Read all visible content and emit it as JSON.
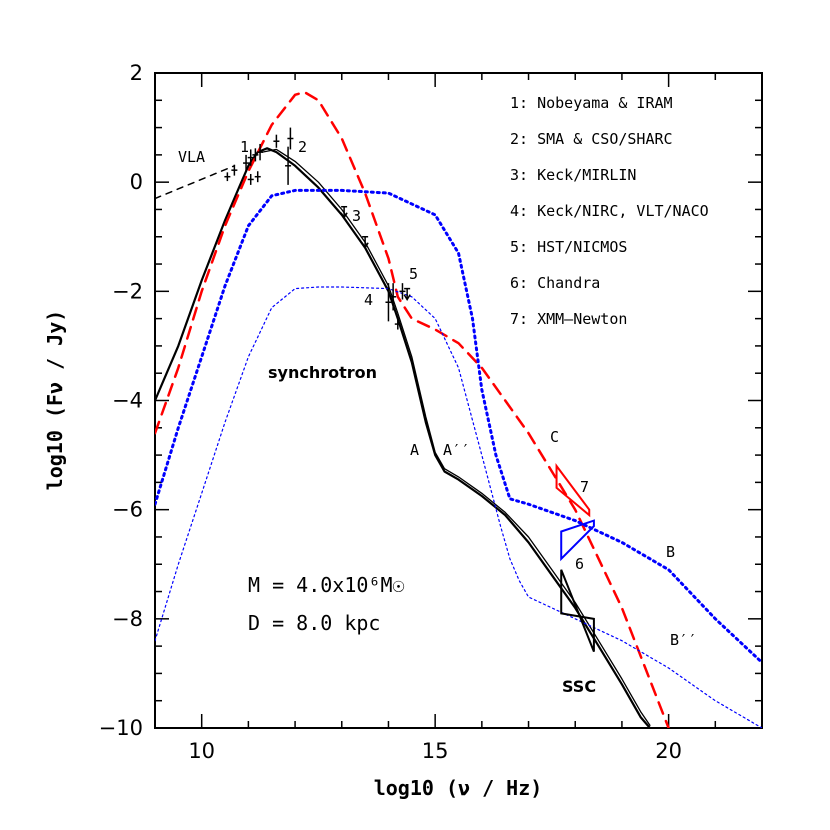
{
  "chart_data": {
    "type": "line",
    "xlabel": "log10 (ν / Hz)",
    "ylabel": "log10 (Fν / Jy)",
    "xlim": [
      9,
      22
    ],
    "ylim": [
      -10,
      2
    ],
    "x_ticks": [
      10,
      15,
      20
    ],
    "y_ticks": [
      2,
      0,
      -2,
      -4,
      -6,
      -8,
      -10
    ],
    "legend": [
      "1: Nobeyama & IRAM",
      "2: SMA & CSO/SHARC",
      "3: Keck/MIRLIN",
      "4: Keck/NIRC, VLT/NACO",
      "5: HST/NICMOS",
      "6: Chandra",
      "7: XMM–Newton"
    ],
    "annotations": {
      "vla": "VLA",
      "lbl1": "1",
      "lbl2": "2",
      "lbl3": "3",
      "lbl4": "4",
      "lbl5": "5",
      "lbl6": "6",
      "lbl7": "7",
      "synchrotron": "synchrotron",
      "A": "A",
      "A2": "A′′",
      "C": "C",
      "B": "B",
      "B2": "B′′",
      "SSC": "SSC",
      "mass": "M = 4.0x10⁶M☉",
      "distance": "D = 8.0 kpc"
    },
    "colors": {
      "red": "#ff0000",
      "blue": "#0000ff",
      "black": "#000000"
    },
    "series": [
      {
        "id": "black-A",
        "x": [
          9.0,
          9.5,
          10.0,
          10.5,
          10.8,
          11.0,
          11.2,
          11.4,
          11.6,
          12.0,
          12.5,
          13.0,
          13.5,
          14.0,
          14.2,
          14.5,
          14.8,
          15.0,
          15.2,
          15.5,
          16.0,
          16.5,
          17.0,
          17.5,
          18.0,
          18.5,
          19.0,
          19.4,
          19.6
        ],
        "y": [
          -4.0,
          -3.0,
          -1.8,
          -0.7,
          -0.1,
          0.3,
          0.55,
          0.62,
          0.55,
          0.3,
          -0.1,
          -0.6,
          -1.2,
          -2.0,
          -2.5,
          -3.3,
          -4.4,
          -5.0,
          -5.3,
          -5.45,
          -5.75,
          -6.1,
          -6.6,
          -7.2,
          -7.8,
          -8.5,
          -9.2,
          -9.8,
          -10.0
        ]
      },
      {
        "id": "black-A2",
        "x": [
          11.3,
          11.6,
          12.0,
          12.5,
          13.0,
          13.5,
          14.0,
          14.2,
          14.5,
          14.8,
          15.0,
          15.2,
          15.5,
          16.0,
          16.5,
          17.0,
          17.5,
          18.0,
          18.5,
          19.0,
          19.4,
          19.6
        ],
        "y": [
          0.55,
          0.6,
          0.38,
          0.0,
          -0.5,
          -1.1,
          -1.9,
          -2.4,
          -3.2,
          -4.3,
          -4.95,
          -5.25,
          -5.4,
          -5.7,
          -6.05,
          -6.5,
          -7.1,
          -7.7,
          -8.4,
          -9.1,
          -9.7,
          -9.95
        ]
      },
      {
        "id": "red-dashed",
        "x": [
          9.0,
          9.5,
          10.0,
          10.5,
          11.0,
          11.5,
          12.0,
          12.2,
          12.5,
          13.0,
          13.5,
          14.0,
          14.2,
          14.5,
          15.0,
          15.5,
          16.0,
          16.5,
          17.0,
          17.5,
          18.0,
          18.5,
          19.0,
          19.5,
          20.0
        ],
        "y": [
          -4.6,
          -3.4,
          -2.0,
          -0.8,
          0.2,
          1.05,
          1.6,
          1.65,
          1.5,
          0.8,
          -0.2,
          -1.4,
          -2.1,
          -2.5,
          -2.7,
          -2.95,
          -3.4,
          -4.0,
          -4.6,
          -5.3,
          -6.0,
          -6.9,
          -7.8,
          -8.9,
          -10.0
        ]
      },
      {
        "id": "blue-dotted-B",
        "x": [
          9.0,
          9.5,
          10.0,
          10.5,
          11.0,
          11.5,
          12.0,
          13.0,
          14.0,
          15.0,
          15.5,
          15.8,
          16.0,
          16.3,
          16.6,
          17.0,
          18.0,
          19.0,
          20.0,
          21.0,
          22.0
        ],
        "y": [
          -5.9,
          -4.5,
          -3.2,
          -1.9,
          -0.8,
          -0.25,
          -0.15,
          -0.15,
          -0.2,
          -0.6,
          -1.3,
          -2.5,
          -3.8,
          -5.0,
          -5.8,
          -5.9,
          -6.2,
          -6.6,
          -7.1,
          -8.0,
          -8.8
        ]
      },
      {
        "id": "blue-dotted-B2",
        "x": [
          9.0,
          9.5,
          10.0,
          10.5,
          11.0,
          11.5,
          12.0,
          12.5,
          13.0,
          14.0,
          14.5,
          15.0,
          15.5,
          16.0,
          16.4,
          16.6,
          16.8,
          17.0,
          18.0,
          19.0,
          20.0,
          21.0,
          22.0
        ],
        "y": [
          -8.4,
          -7.0,
          -5.7,
          -4.4,
          -3.2,
          -2.3,
          -1.95,
          -1.92,
          -1.92,
          -1.95,
          -2.1,
          -2.5,
          -3.4,
          -5.0,
          -6.3,
          -6.9,
          -7.3,
          -7.6,
          -8.0,
          -8.4,
          -8.9,
          -9.5,
          -10.0
        ]
      },
      {
        "id": "vla-dashed",
        "x": [
          9.0,
          10.7
        ],
        "y": [
          -0.3,
          0.3
        ]
      }
    ],
    "data_points": [
      {
        "x": 10.55,
        "y": 0.1,
        "err": 0.08
      },
      {
        "x": 10.7,
        "y": 0.22,
        "err": 0.1
      },
      {
        "x": 10.95,
        "y": 0.35,
        "err": 0.15
      },
      {
        "x": 11.05,
        "y": 0.45,
        "err": 0.15
      },
      {
        "x": 11.15,
        "y": 0.5,
        "err": 0.12
      },
      {
        "x": 11.25,
        "y": 0.55,
        "err": 0.15
      },
      {
        "x": 11.05,
        "y": 0.05,
        "err": 0.1
      },
      {
        "x": 11.2,
        "y": 0.1,
        "err": 0.1
      },
      {
        "x": 11.6,
        "y": 0.75,
        "err": 0.12
      },
      {
        "x": 11.85,
        "y": 0.3,
        "err": 0.35
      },
      {
        "x": 11.9,
        "y": 0.8,
        "err": 0.2
      },
      {
        "x": 14.0,
        "y": -2.2,
        "err": 0.35
      },
      {
        "x": 14.1,
        "y": -2.1,
        "err": 0.25
      },
      {
        "x": 14.2,
        "y": -2.6,
        "err": 0.1
      },
      {
        "x": 14.3,
        "y": -2.0,
        "err": 0.15
      }
    ],
    "upper_limits": [
      {
        "x": 13.05,
        "y": -0.45
      },
      {
        "x": 13.5,
        "y": -1.0
      },
      {
        "x": 14.4,
        "y": -1.95
      }
    ],
    "bowties": [
      {
        "id": "chandra-6",
        "color": "#000000",
        "x": [
          17.7,
          18.4
        ],
        "y_hi": [
          -7.1,
          -8.6
        ],
        "y_lo": [
          -7.9,
          -8.0
        ]
      },
      {
        "id": "xmm-7",
        "color": "#0000ff",
        "x": [
          17.7,
          18.4
        ],
        "y_hi": [
          -6.9,
          -6.3
        ],
        "y_lo": [
          -6.4,
          -6.2
        ]
      },
      {
        "id": "flare-C",
        "color": "#ff0000",
        "x": [
          17.6,
          18.3
        ],
        "y_hi": [
          -5.2,
          -6.0
        ],
        "y_lo": [
          -5.6,
          -6.1
        ]
      }
    ]
  }
}
